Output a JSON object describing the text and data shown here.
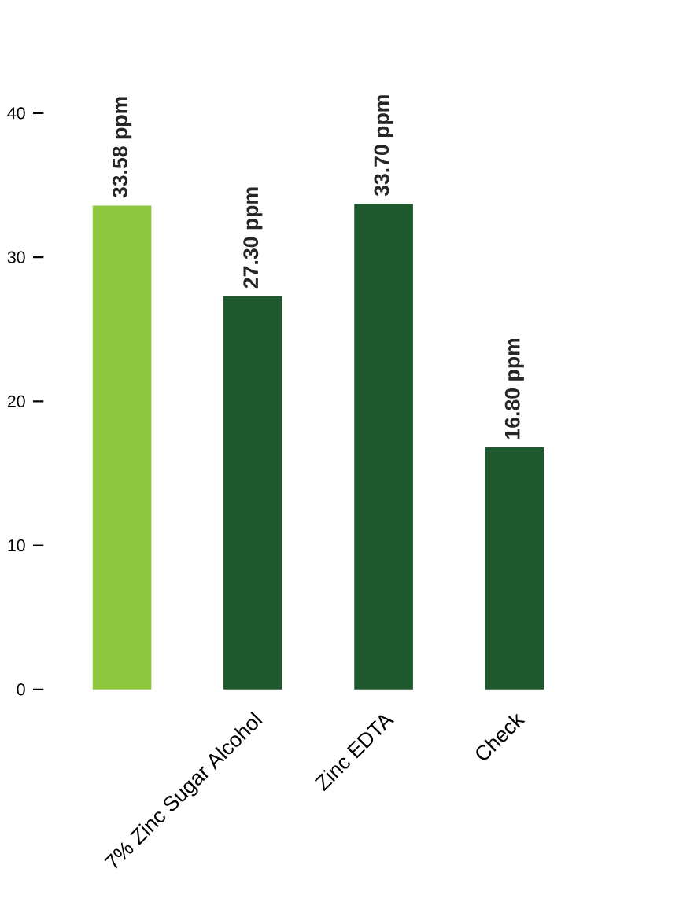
{
  "chart_data": {
    "type": "bar",
    "categories": [
      null,
      "7% Zinc Sugar Alcohol",
      "Zinc EDTA",
      "Check"
    ],
    "values": [
      33.58,
      27.3,
      33.7,
      16.8
    ],
    "value_labels": [
      "33.58 ppm",
      "27.30 ppm",
      "33.70 ppm",
      "16.80 ppm"
    ],
    "colors": [
      "#8dc63f",
      "#1f5a2e",
      "#1f5a2e",
      "#1f5a2e"
    ],
    "ylim": [
      0,
      40
    ],
    "yticks": [
      0,
      10,
      20,
      30,
      40
    ],
    "grid": false
  }
}
